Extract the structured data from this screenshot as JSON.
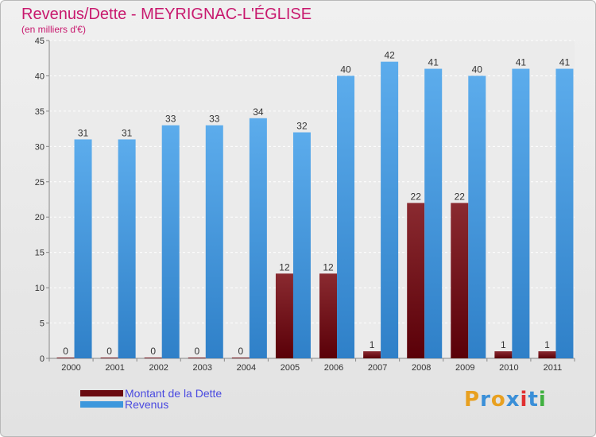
{
  "header": {
    "title": "Revenus/Dette - MEYRIGNAC-L'ÉGLISE",
    "subtitle": "(en milliers d'€)"
  },
  "legend": {
    "debt_label": "Montant de la Dette",
    "revenue_label": "Revenus"
  },
  "logo": {
    "text": "Proxiti",
    "colors": [
      "#e8a020",
      "#3a8fd8",
      "#e8a020",
      "#3a8fd8",
      "#e03030",
      "#3a8fd8",
      "#40b040"
    ]
  },
  "colors": {
    "debt": "#7a1418",
    "revenue": "#3d97dc",
    "title": "#c8196e",
    "legend_text": "#4a4ae0"
  },
  "chart_data": {
    "type": "bar",
    "title": "Revenus/Dette - MEYRIGNAC-L'ÉGLISE",
    "subtitle": "(en milliers d'€)",
    "categories": [
      "2000",
      "2001",
      "2002",
      "2003",
      "2004",
      "2005",
      "2006",
      "2007",
      "2008",
      "2009",
      "2010",
      "2011"
    ],
    "series": [
      {
        "name": "Montant de la Dette",
        "values": [
          0,
          0,
          0,
          0,
          0,
          12,
          12,
          1,
          22,
          22,
          1,
          1
        ]
      },
      {
        "name": "Revenus",
        "values": [
          31,
          31,
          33,
          33,
          34,
          32,
          40,
          42,
          41,
          40,
          41,
          41
        ]
      }
    ],
    "ylim": [
      0,
      45
    ],
    "yticks": [
      0,
      5,
      10,
      15,
      20,
      25,
      30,
      35,
      40,
      45
    ],
    "grid": true,
    "legend_position": "bottom-left"
  }
}
